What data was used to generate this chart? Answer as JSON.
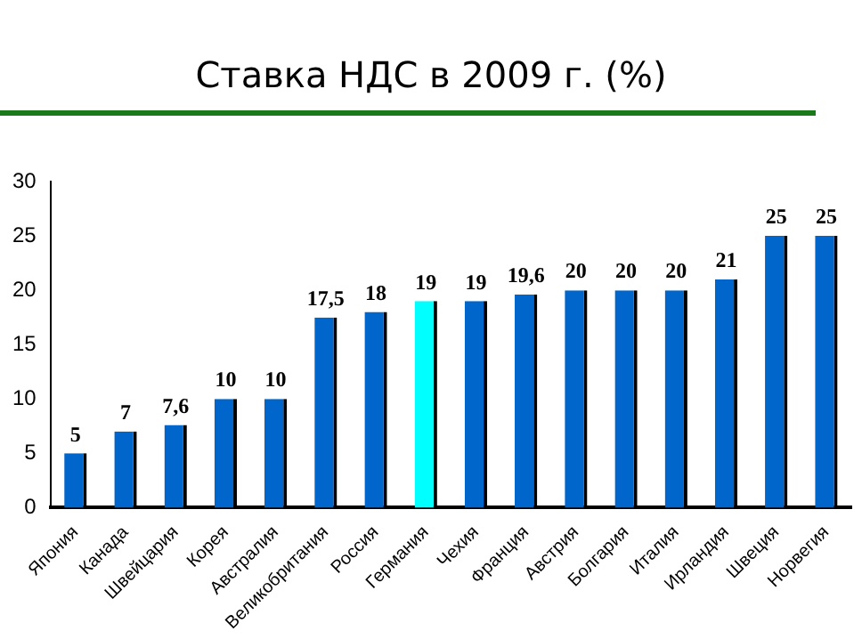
{
  "chart_data": {
    "type": "bar",
    "title": "Ставка НДС в 2009 г. (%)",
    "categories": [
      "Япония",
      "Канада",
      "Швейцария",
      "Корея",
      "Австралия",
      "Великобритания",
      "Россия",
      "Германия",
      "Чехия",
      "Франция",
      "Австрия",
      "Болгария",
      "Италия",
      "Ирландия",
      "Швеция",
      "Норвегия"
    ],
    "values": [
      5,
      7,
      7.6,
      10,
      10,
      17.5,
      18,
      19,
      19,
      19.6,
      20,
      20,
      20,
      21,
      25,
      25
    ],
    "value_labels": [
      "5",
      "7",
      "7,6",
      "10",
      "10",
      "17,5",
      "18",
      "19",
      "19",
      "19,6",
      "20",
      "20",
      "20",
      "21",
      "25",
      "25"
    ],
    "colors": [
      "#0066cc",
      "#0066cc",
      "#0066cc",
      "#0066cc",
      "#0066cc",
      "#0066cc",
      "#0066cc",
      "#00ffff",
      "#0066cc",
      "#0066cc",
      "#0066cc",
      "#0066cc",
      "#0066cc",
      "#0066cc",
      "#0066cc",
      "#0066cc"
    ],
    "ylim": [
      0,
      30
    ],
    "yticks": [
      0,
      5,
      10,
      15,
      20,
      25,
      30
    ],
    "grid": false,
    "legend": false
  }
}
